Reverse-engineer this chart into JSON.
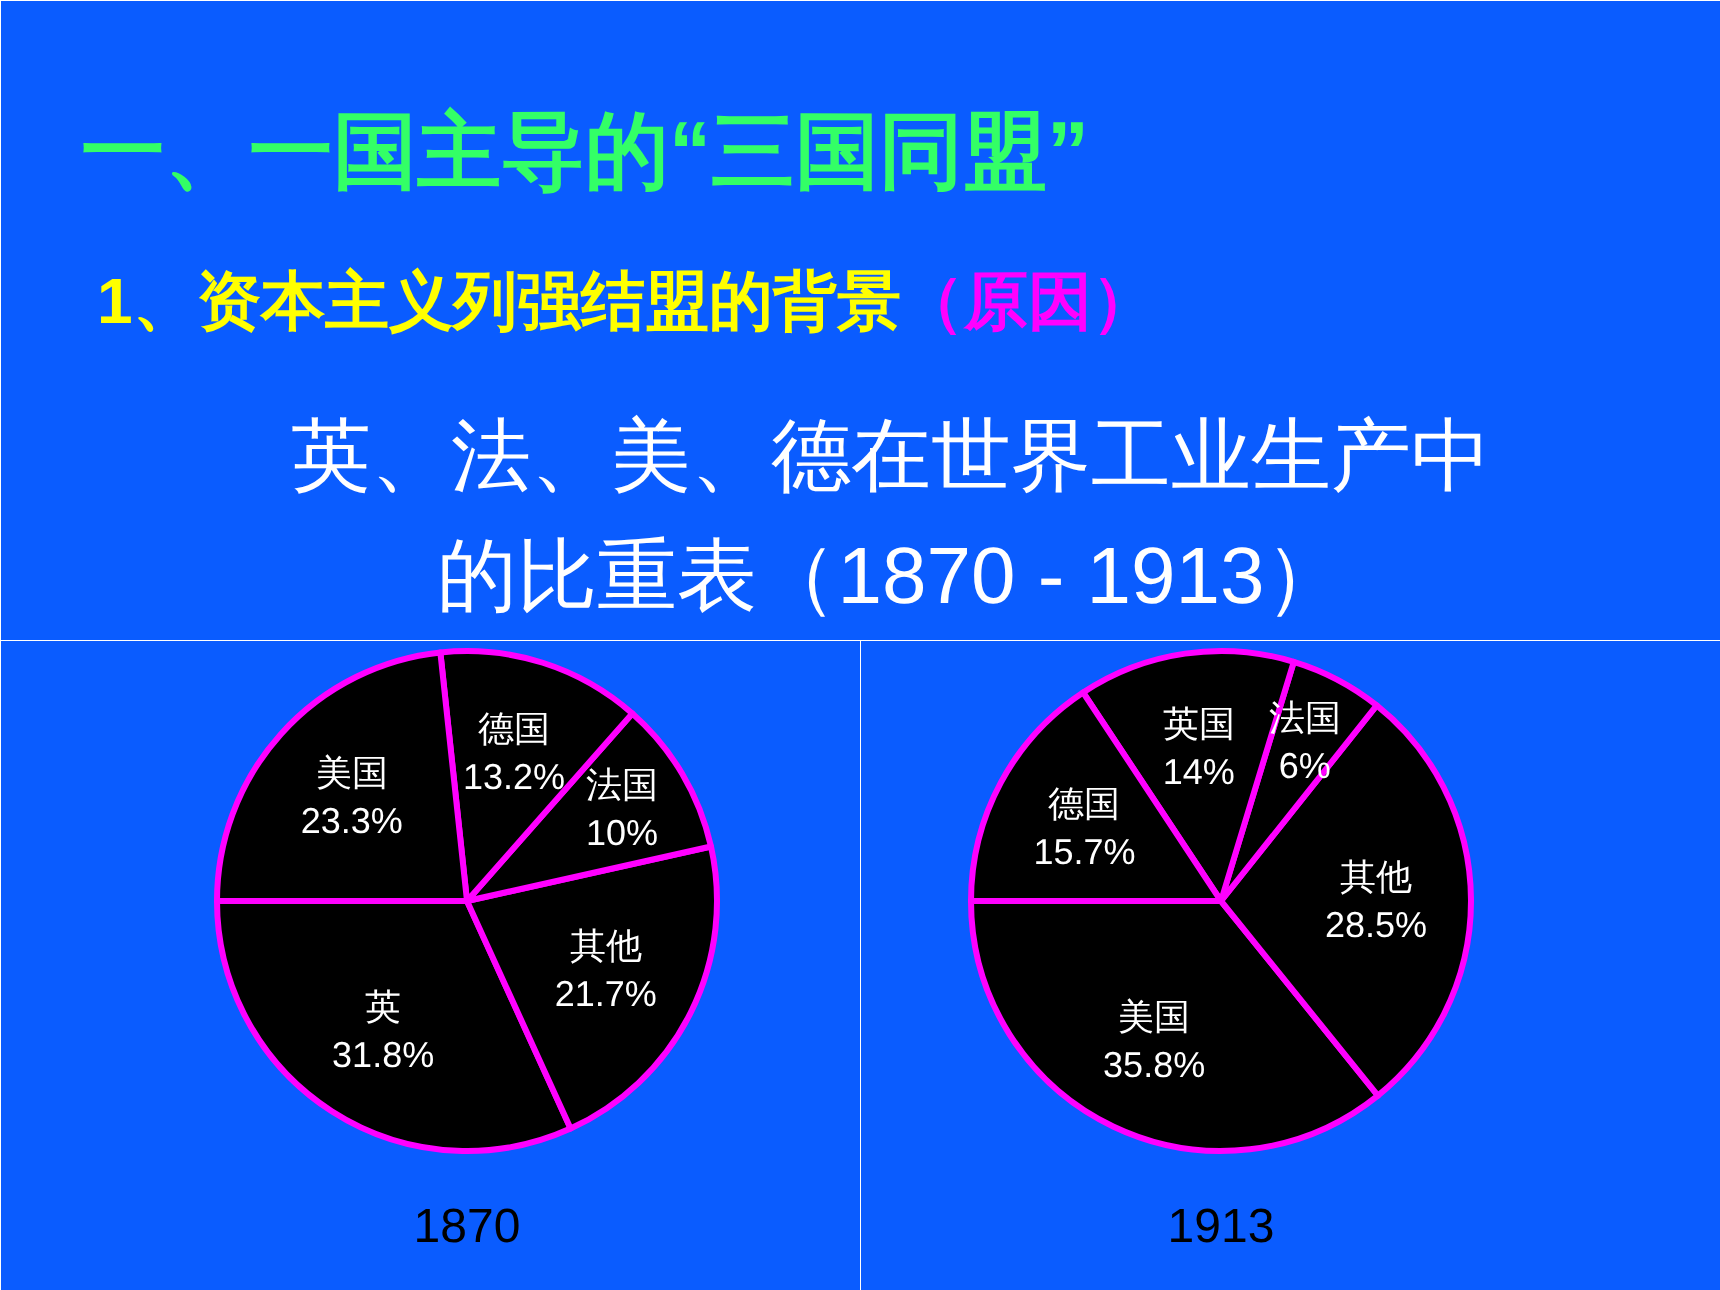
{
  "chart_data": [
    {
      "type": "other",
      "title": "一、一国主导的“三国同盟”",
      "subtitle": "1、资本主义列强结盟的背景",
      "annotations": [
        "（原因）",
        "英、法、美、德在世界工业生产中的比重表（1870 - 1913）"
      ]
    },
    {
      "type": "pie",
      "title": "1870",
      "categories": [
        "英",
        "其他",
        "法国",
        "德国",
        "美国"
      ],
      "values": [
        31.8,
        21.7,
        10,
        13.2,
        23.3
      ],
      "value_labels": [
        "31.8%",
        "21.7%",
        "10%",
        "13.2%",
        "23.3%"
      ],
      "colors": [
        "#000000",
        "#000000",
        "#000000",
        "#000000",
        "#000000"
      ]
    },
    {
      "type": "pie",
      "title": "1913",
      "categories": [
        "美国",
        "其他",
        "法国",
        "英国",
        "德国"
      ],
      "values": [
        35.8,
        28.5,
        6,
        14,
        15.7
      ],
      "value_labels": [
        "35.8%",
        "28.5%",
        "6%",
        "14%",
        "15.7%"
      ],
      "colors": [
        "#000000",
        "#000000",
        "#000000",
        "#000000",
        "#000000"
      ]
    }
  ]
}
